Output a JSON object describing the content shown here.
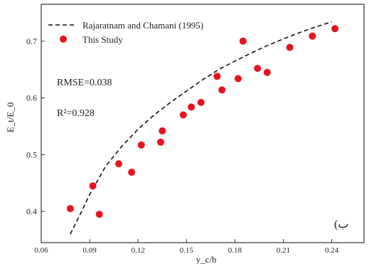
{
  "chart_data": {
    "type": "scatter",
    "title": "",
    "xlabel": "y_c/b",
    "ylabel": "E_t/E_0",
    "xlim": [
      0.06,
      0.26
    ],
    "ylim": [
      0.345,
      0.765
    ],
    "xticks": [
      {
        "value": 0.06,
        "label": "0.06"
      },
      {
        "value": 0.09,
        "label": "0.09"
      },
      {
        "value": 0.12,
        "label": "0.12"
      },
      {
        "value": 0.15,
        "label": "0.15"
      },
      {
        "value": 0.18,
        "label": "0.18"
      },
      {
        "value": 0.21,
        "label": "0.21"
      },
      {
        "value": 0.24,
        "label": "0.24"
      }
    ],
    "yticks": [
      {
        "value": 0.4,
        "label": "0.4"
      },
      {
        "value": 0.5,
        "label": "0.5"
      },
      {
        "value": 0.6,
        "label": "0.6"
      },
      {
        "value": 0.7,
        "label": "0.7"
      }
    ],
    "grid": false,
    "legend_position": "top-left",
    "series": [
      {
        "name": "Rajaratnam and Chamani (1995)",
        "kind": "line",
        "style": "dashed",
        "color": "#111111",
        "x": [
          0.078,
          0.085,
          0.09,
          0.1,
          0.11,
          0.12,
          0.13,
          0.14,
          0.15,
          0.16,
          0.17,
          0.18,
          0.19,
          0.2,
          0.21,
          0.22,
          0.23,
          0.24
        ],
        "y": [
          0.36,
          0.4,
          0.43,
          0.48,
          0.515,
          0.545,
          0.57,
          0.592,
          0.612,
          0.632,
          0.65,
          0.665,
          0.679,
          0.692,
          0.704,
          0.715,
          0.725,
          0.734
        ]
      },
      {
        "name": "This Study",
        "kind": "scatter",
        "color": "#e8121c",
        "x": [
          0.078,
          0.092,
          0.096,
          0.108,
          0.116,
          0.122,
          0.134,
          0.135,
          0.148,
          0.153,
          0.159,
          0.169,
          0.172,
          0.182,
          0.185,
          0.194,
          0.2,
          0.214,
          0.228,
          0.242
        ],
        "y": [
          0.405,
          0.445,
          0.395,
          0.484,
          0.469,
          0.517,
          0.522,
          0.542,
          0.57,
          0.584,
          0.592,
          0.638,
          0.614,
          0.634,
          0.7,
          0.652,
          0.645,
          0.689,
          0.709,
          0.722
        ]
      }
    ],
    "annotations": [
      {
        "id": "rmse",
        "text": "RMSE=0.038"
      },
      {
        "id": "r2",
        "text": "R²=0.928"
      },
      {
        "id": "panel",
        "text": "(ب"
      }
    ]
  }
}
